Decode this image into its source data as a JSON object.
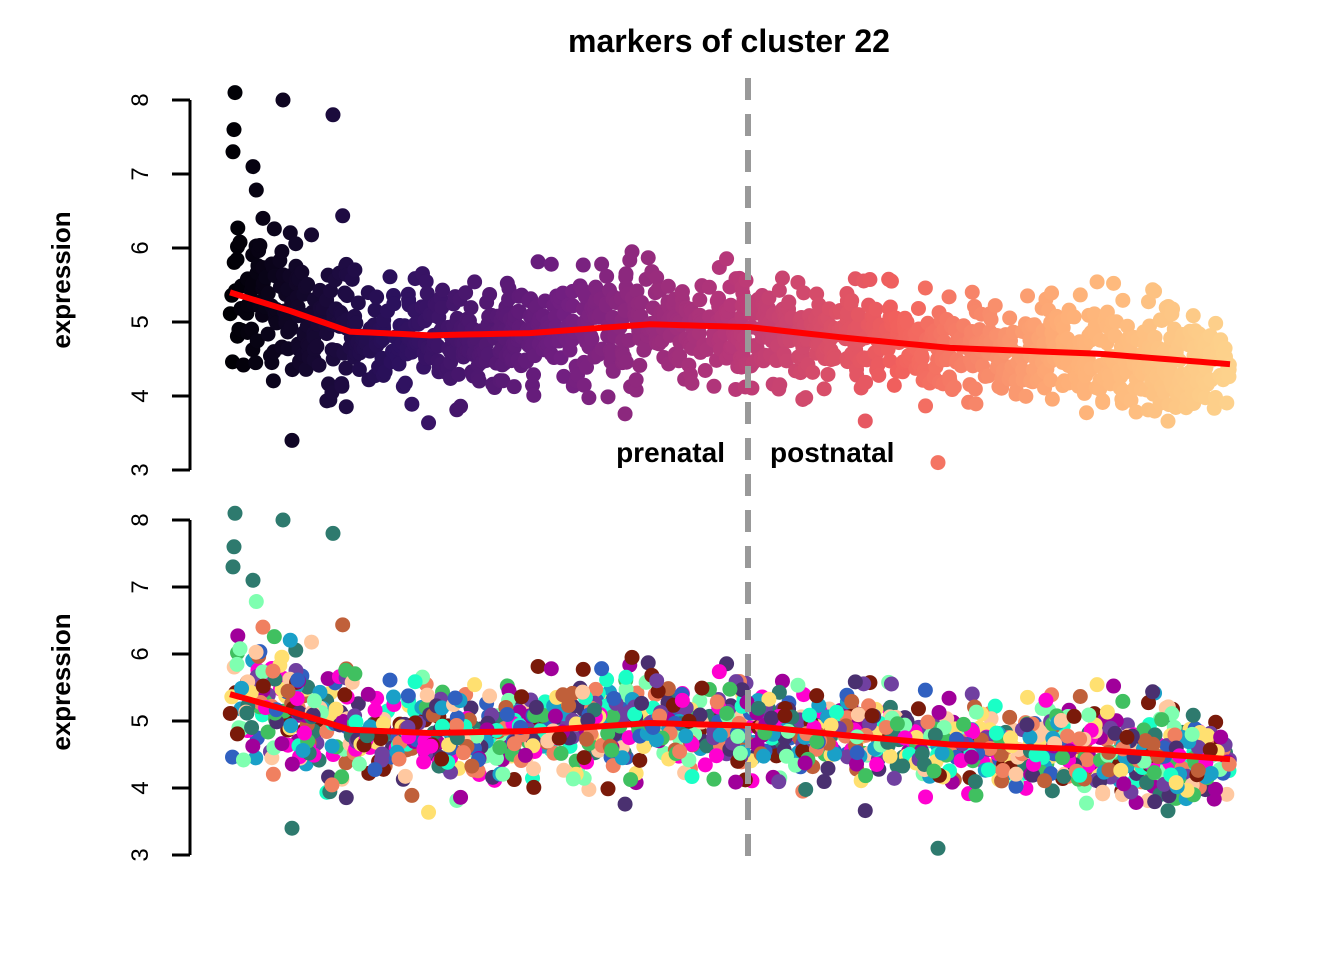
{
  "chart_data": {
    "type": "scatter",
    "title": "markers of cluster 22",
    "panels": [
      {
        "ylabel": "expression",
        "ylim": [
          3,
          8
        ],
        "yticks": [
          "3",
          "4",
          "5",
          "6",
          "7",
          "8"
        ],
        "color_scheme": "magma gradient by sample order"
      },
      {
        "ylabel": "expression",
        "ylim": [
          3,
          8
        ],
        "yticks": [
          "3",
          "4",
          "5",
          "6",
          "7",
          "8"
        ],
        "color_scheme": "categorical by cluster"
      }
    ],
    "xlim": [
      0,
      100
    ],
    "divider_x": 51.8,
    "divider_color": "#999999",
    "annotations": {
      "left": "prenatal",
      "right": "postnatal"
    },
    "trend_color": "#ff0000",
    "trend": {
      "x": [
        0,
        6,
        12,
        20,
        30,
        42,
        52,
        62,
        72,
        87,
        100
      ],
      "y": [
        5.4,
        5.15,
        4.87,
        4.82,
        4.85,
        4.97,
        4.93,
        4.78,
        4.65,
        4.57,
        4.43
      ]
    },
    "spread_sd": 0.35,
    "outliers": [
      {
        "x": 0.5,
        "y": 8.1
      },
      {
        "x": 5.3,
        "y": 8.0
      },
      {
        "x": 10.3,
        "y": 7.8
      },
      {
        "x": 0.4,
        "y": 7.6
      },
      {
        "x": 0.3,
        "y": 7.3
      },
      {
        "x": 2.3,
        "y": 7.1
      },
      {
        "x": 6.2,
        "y": 3.4
      },
      {
        "x": 70.8,
        "y": 3.1
      }
    ],
    "gradient_colors": [
      "#000004",
      "#2c115f",
      "#721f81",
      "#b73779",
      "#f1605d",
      "#feaf77",
      "#fdd28c"
    ],
    "category_colors": [
      "#2e7a6e",
      "#1affc6",
      "#7fffb0",
      "#7a1a0a",
      "#c0603a",
      "#4a3070",
      "#ff00d0",
      "#a0009a",
      "#1aa0c8",
      "#3060c0",
      "#ffc8a0",
      "#f08060",
      "#40c060",
      "#ffe070",
      "#7040a0"
    ]
  }
}
